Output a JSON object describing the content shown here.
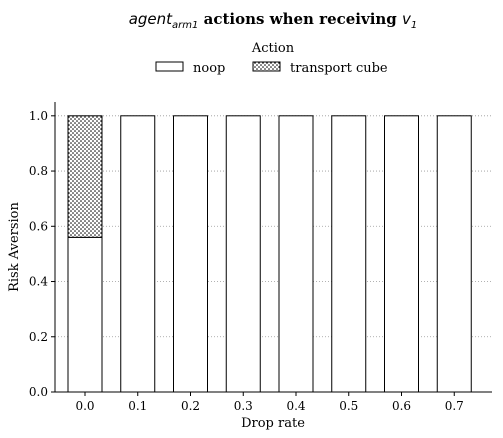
{
  "chart_data": {
    "type": "bar",
    "stacked": true,
    "title": {
      "main": "agent",
      "sub": "arm1",
      "rest": " actions when receiving ",
      "var": "v",
      "var_sub": "1"
    },
    "xlabel": "Drop rate",
    "ylabel": "Risk Aversion",
    "categories": [
      "0.0",
      "0.1",
      "0.2",
      "0.3",
      "0.4",
      "0.5",
      "0.6",
      "0.7"
    ],
    "ylim": [
      0,
      1.05
    ],
    "yticks": [
      "0.0",
      "0.2",
      "0.4",
      "0.6",
      "0.8",
      "1.0"
    ],
    "grid": "y-dotted",
    "legend": {
      "title": "Action",
      "placement": "top-center"
    },
    "series": [
      {
        "name": "noop",
        "pattern": "none",
        "values": [
          0.56,
          1.0,
          1.0,
          1.0,
          1.0,
          1.0,
          1.0,
          1.0
        ]
      },
      {
        "name": "transport cube",
        "pattern": "dots",
        "values": [
          0.44,
          0,
          0,
          0,
          0,
          0,
          0,
          0
        ]
      }
    ]
  }
}
